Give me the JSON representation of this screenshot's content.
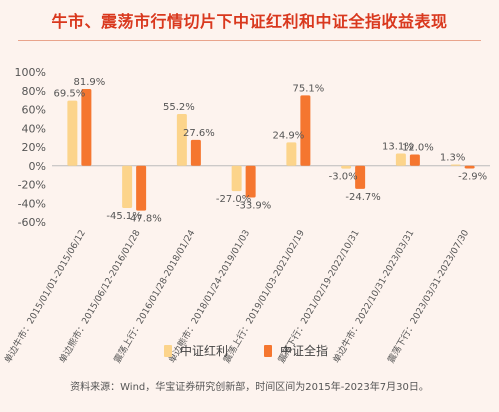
{
  "title": "牛市、震荡市行情切片下中证红利和中证全指收益表现",
  "source": "资料来源：Wind，华宝证券研究创新部，时间区间为2015年-2023年7月30日。",
  "colors": {
    "series_a": "#fcd48b",
    "series_b": "#f5762f",
    "title": "#d9381e"
  },
  "chart_data": {
    "type": "bar",
    "categories": [
      "单边牛市：2015/01/01-2015/06/12",
      "单边熊市：2015/06/12-2016/01/28",
      "震荡上行：2016/01/28-2018/01/24",
      "单边熊市：2018/01/24-2019/01/03",
      "震荡上行：2019/01/03-2021/02/19",
      "震荡下行：2021/02/19-2022/10/31",
      "单边牛市：2022/10/31-2023/03/31",
      "震荡下行：2023/03/31-2023/07/30"
    ],
    "series": [
      {
        "name": "中证红利",
        "values": [
          69.5,
          -45.1,
          55.2,
          -27.0,
          24.9,
          -3.0,
          13.1,
          1.3
        ]
      },
      {
        "name": "中证全指",
        "values": [
          81.9,
          -47.8,
          27.6,
          -33.9,
          75.1,
          -24.7,
          12.0,
          -2.9
        ]
      }
    ],
    "ylim": [
      -60,
      100
    ],
    "yticks": [
      "100%",
      "80%",
      "60%",
      "40%",
      "20%",
      "0%",
      "-20%",
      "-40%",
      "-60%"
    ],
    "ytick_values": [
      100,
      80,
      60,
      40,
      20,
      0,
      -20,
      -40,
      -60
    ],
    "legend": "bottom",
    "grid": false
  }
}
